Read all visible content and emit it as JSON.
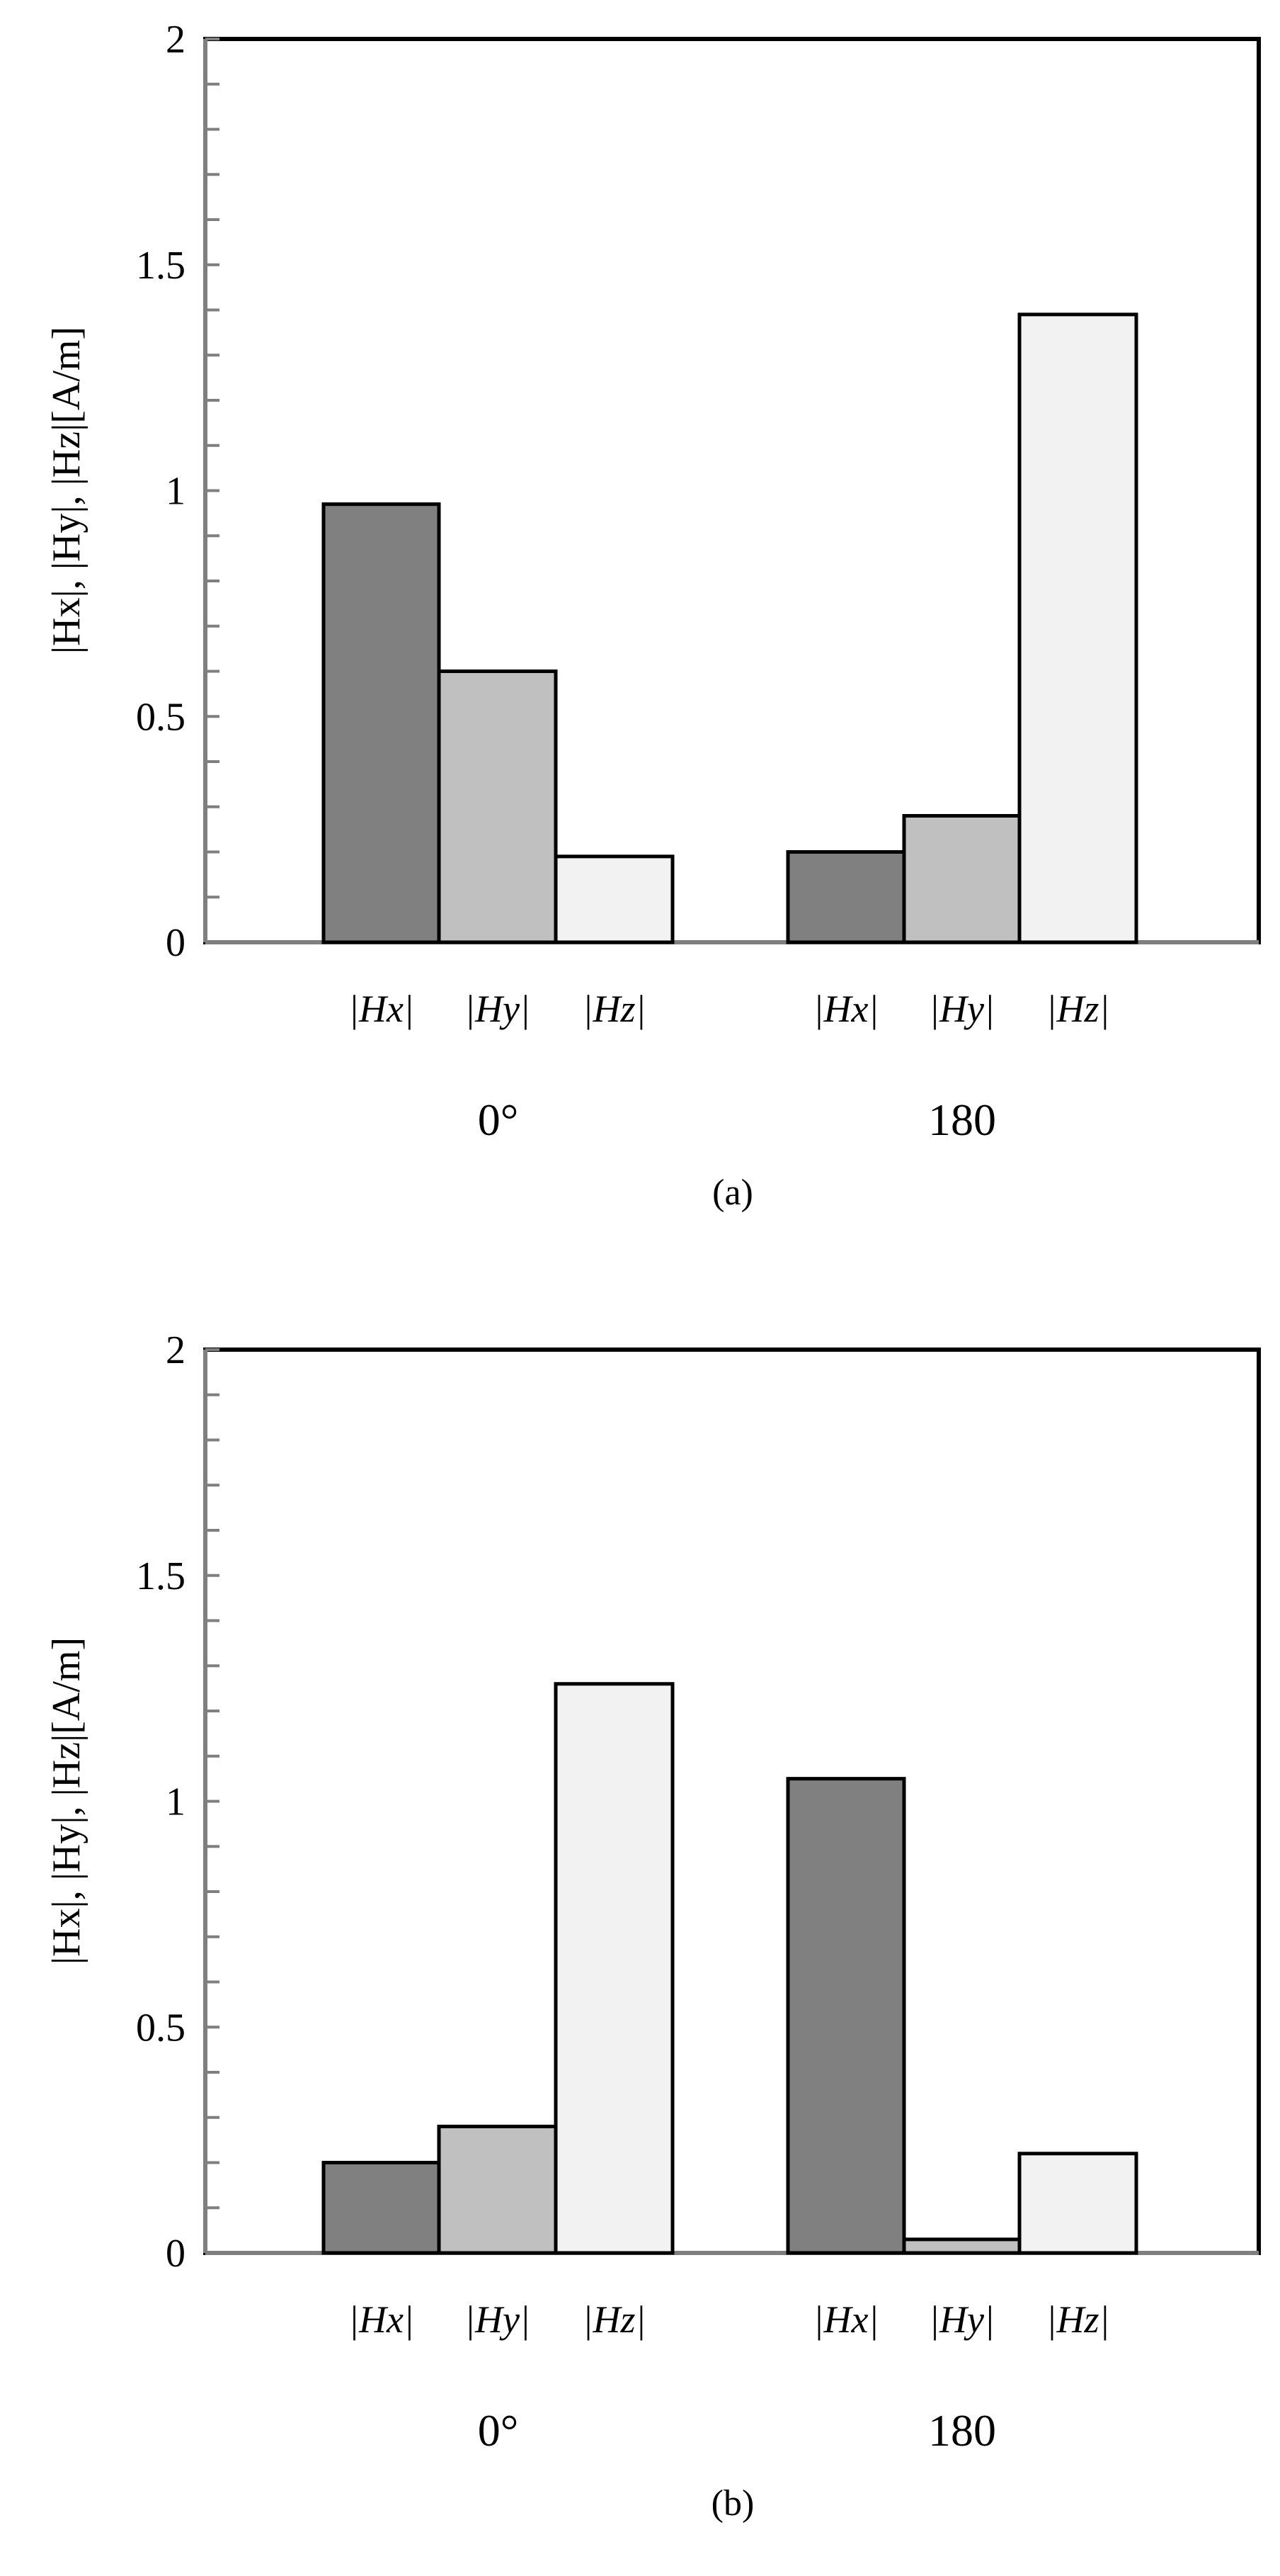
{
  "chart_data": [
    {
      "type": "bar",
      "caption": "(a)",
      "ylabel": "|Hx|, |Hy|, |Hz|[A/m]",
      "ylim": [
        0,
        2
      ],
      "yticks": [
        "0",
        "0.5",
        "1",
        "1.5",
        "2"
      ],
      "grid": false,
      "groups": [
        {
          "label": "0°",
          "bars": [
            {
              "label": "|Hx|",
              "value": 0.97,
              "color": "#808080"
            },
            {
              "label": "|Hy|",
              "value": 0.6,
              "color": "#c0c0c0"
            },
            {
              "label": "|Hz|",
              "value": 0.19,
              "color": "#f2f2f2"
            }
          ]
        },
        {
          "label": "180",
          "bars": [
            {
              "label": "|Hx|",
              "value": 0.2,
              "color": "#808080"
            },
            {
              "label": "|Hy|",
              "value": 0.28,
              "color": "#c0c0c0"
            },
            {
              "label": "|Hz|",
              "value": 1.39,
              "color": "#f2f2f2"
            }
          ]
        }
      ]
    },
    {
      "type": "bar",
      "caption": "(b)",
      "ylabel": "|Hx|, |Hy|, |Hz|[A/m]",
      "ylim": [
        0,
        2
      ],
      "yticks": [
        "0",
        "0.5",
        "1",
        "1.5",
        "2"
      ],
      "grid": false,
      "groups": [
        {
          "label": "0°",
          "bars": [
            {
              "label": "|Hx|",
              "value": 0.2,
              "color": "#808080"
            },
            {
              "label": "|Hy|",
              "value": 0.28,
              "color": "#c0c0c0"
            },
            {
              "label": "|Hz|",
              "value": 1.26,
              "color": "#f2f2f2"
            }
          ]
        },
        {
          "label": "180",
          "bars": [
            {
              "label": "|Hx|",
              "value": 1.05,
              "color": "#808080"
            },
            {
              "label": "|Hy|",
              "value": 0.03,
              "color": "#c0c0c0"
            },
            {
              "label": "|Hz|",
              "value": 0.22,
              "color": "#f2f2f2"
            }
          ]
        }
      ]
    }
  ]
}
